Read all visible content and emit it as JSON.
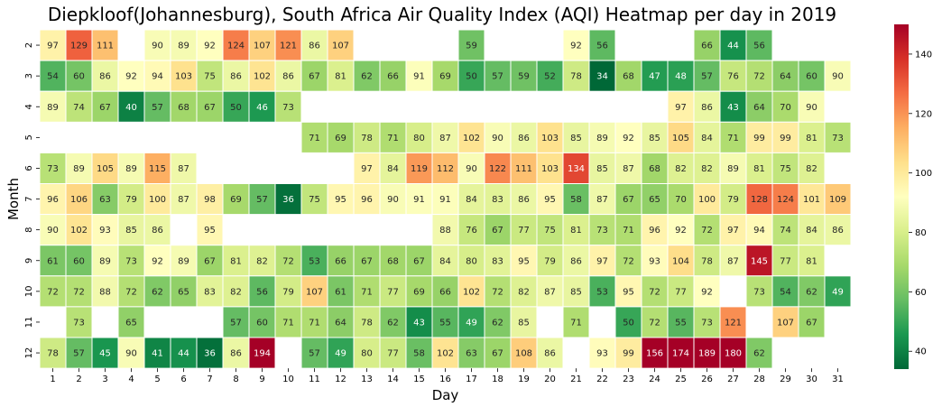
{
  "chart_data": {
    "type": "heatmap",
    "title": "Diepkloof(Johannesburg), South Africa Air Quality Index (AQI) Heatmap per day in 2019",
    "xlabel": "Day",
    "ylabel": "Month",
    "x_categories": [
      "1",
      "2",
      "3",
      "4",
      "5",
      "6",
      "7",
      "8",
      "9",
      "10",
      "11",
      "12",
      "13",
      "14",
      "15",
      "16",
      "17",
      "18",
      "19",
      "20",
      "21",
      "22",
      "23",
      "24",
      "25",
      "26",
      "27",
      "28",
      "29",
      "30",
      "31"
    ],
    "y_categories": [
      "2",
      "3",
      "4",
      "5",
      "6",
      "7",
      "8",
      "9",
      "10",
      "11",
      "12"
    ],
    "values": [
      [
        97,
        129,
        111,
        null,
        90,
        89,
        92,
        124,
        107,
        121,
        86,
        107,
        null,
        null,
        null,
        null,
        59,
        null,
        null,
        null,
        92,
        56,
        null,
        null,
        null,
        66,
        44,
        56,
        null,
        null,
        null
      ],
      [
        54,
        60,
        86,
        92,
        94,
        103,
        75,
        86,
        102,
        86,
        67,
        81,
        62,
        66,
        91,
        69,
        50,
        57,
        59,
        52,
        78,
        34,
        68,
        47,
        48,
        57,
        76,
        72,
        64,
        60,
        90
      ],
      [
        89,
        74,
        67,
        40,
        57,
        68,
        67,
        50,
        46,
        73,
        null,
        null,
        null,
        null,
        null,
        null,
        null,
        null,
        null,
        null,
        null,
        null,
        null,
        null,
        97,
        86,
        43,
        64,
        70,
        90,
        null
      ],
      [
        null,
        null,
        null,
        null,
        null,
        null,
        null,
        null,
        null,
        null,
        71,
        69,
        78,
        71,
        80,
        87,
        102,
        90,
        86,
        103,
        85,
        89,
        92,
        85,
        105,
        84,
        71,
        99,
        99,
        81,
        73
      ],
      [
        73,
        89,
        105,
        89,
        115,
        87,
        null,
        null,
        null,
        null,
        null,
        null,
        97,
        84,
        119,
        112,
        90,
        122,
        111,
        103,
        134,
        85,
        87,
        68,
        82,
        82,
        89,
        81,
        75,
        82,
        null
      ],
      [
        96,
        106,
        63,
        79,
        100,
        87,
        98,
        69,
        57,
        36,
        75,
        95,
        96,
        90,
        91,
        91,
        84,
        83,
        86,
        95,
        58,
        87,
        67,
        65,
        70,
        100,
        79,
        128,
        124,
        101,
        109
      ],
      [
        90,
        102,
        93,
        85,
        86,
        null,
        95,
        null,
        null,
        null,
        null,
        null,
        null,
        null,
        null,
        88,
        76,
        67,
        77,
        75,
        81,
        73,
        71,
        96,
        92,
        72,
        97,
        94,
        74,
        84,
        86
      ],
      [
        61,
        60,
        89,
        73,
        92,
        89,
        67,
        81,
        82,
        72,
        53,
        66,
        67,
        68,
        67,
        84,
        80,
        83,
        95,
        79,
        86,
        97,
        72,
        93,
        104,
        78,
        87,
        145,
        77,
        81,
        null
      ],
      [
        72,
        72,
        88,
        72,
        62,
        65,
        83,
        82,
        56,
        79,
        107,
        61,
        71,
        77,
        69,
        66,
        102,
        72,
        82,
        87,
        85,
        53,
        95,
        72,
        77,
        92,
        null,
        73,
        54,
        62,
        49
      ],
      [
        null,
        73,
        null,
        65,
        null,
        null,
        null,
        57,
        60,
        71,
        71,
        64,
        78,
        62,
        43,
        55,
        49,
        62,
        85,
        null,
        71,
        null,
        50,
        72,
        55,
        73,
        121,
        null,
        107,
        67,
        null
      ],
      [
        78,
        57,
        45,
        90,
        41,
        44,
        36,
        86,
        194,
        null,
        57,
        49,
        80,
        77,
        58,
        102,
        63,
        67,
        108,
        86,
        null,
        93,
        99,
        156,
        174,
        189,
        180,
        62,
        null,
        null,
        null
      ]
    ],
    "vmin": 34,
    "vmax": 150,
    "colormap": "RdYlGn_r",
    "colorbar_ticks": [
      "40",
      "60",
      "80",
      "100",
      "120",
      "140"
    ],
    "grid": false
  }
}
